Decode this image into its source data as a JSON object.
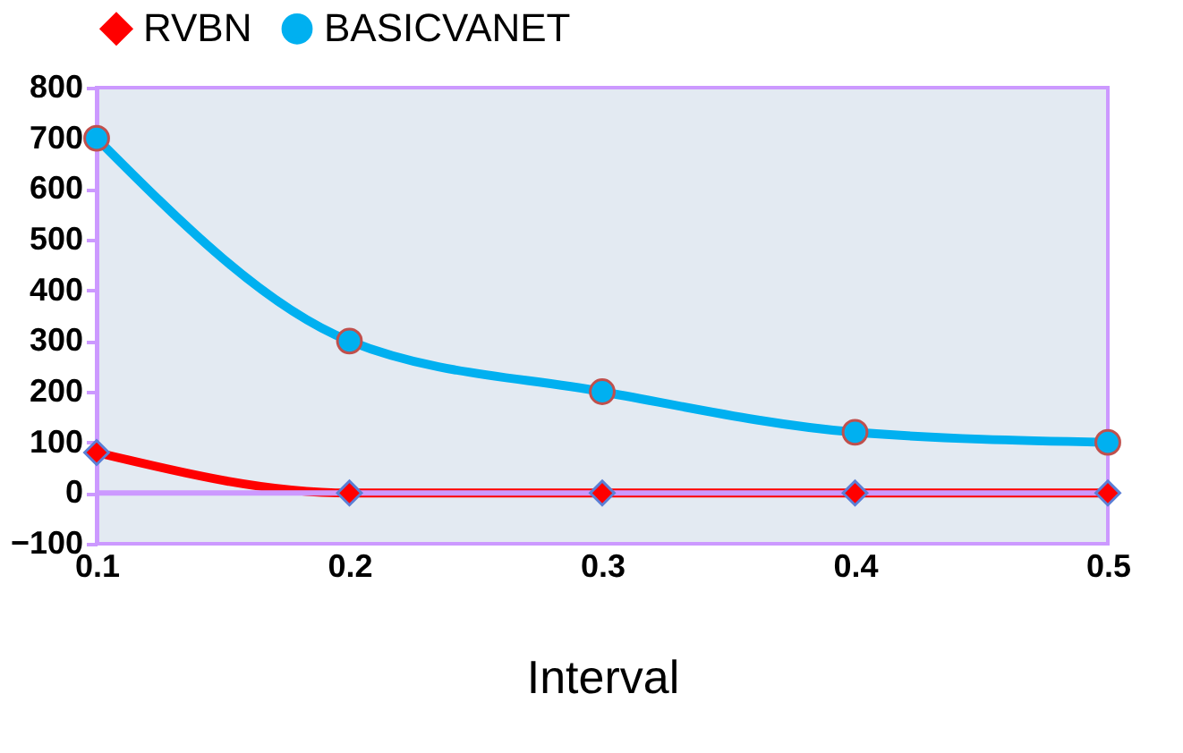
{
  "chart_data": {
    "type": "line",
    "xlabel": "Interval",
    "x": [
      0.1,
      0.2,
      0.3,
      0.4,
      0.5
    ],
    "series": [
      {
        "name": "RVBN",
        "color": "#ff0000",
        "marker": "diamond",
        "values": [
          80,
          0,
          0,
          0,
          0
        ]
      },
      {
        "name": "BASICVANET",
        "color": "#00b0f0",
        "marker": "circle",
        "values": [
          700,
          300,
          200,
          120,
          100
        ]
      }
    ],
    "xlim": [
      0.1,
      0.5
    ],
    "xticks": [
      0.1,
      0.2,
      0.3,
      0.4,
      0.5
    ],
    "ylim": [
      -100,
      800
    ],
    "yticks": [
      -100,
      0,
      100,
      200,
      300,
      400,
      500,
      600,
      700,
      800
    ],
    "ref_lines": [
      {
        "axis": "y",
        "value": 0,
        "color": "#cc99ff"
      }
    ],
    "grid": false,
    "legend": "top",
    "line_style": "solid"
  }
}
